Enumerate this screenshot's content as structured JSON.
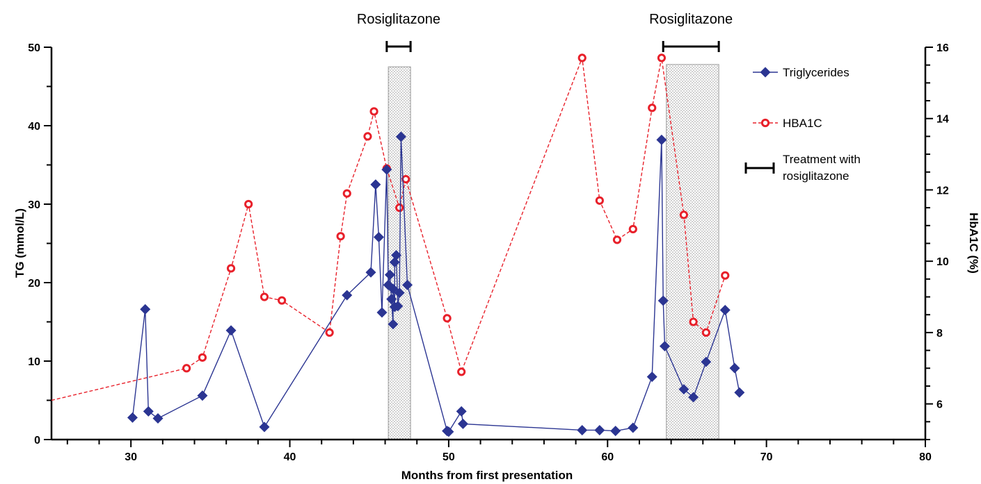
{
  "chart_data": {
    "type": "line",
    "xlabel": "Months from first presentation",
    "ylabel_left": "TG (mmol/L)",
    "ylabel_right": "HbA1C (%)",
    "xlim": [
      25,
      80
    ],
    "xticks": [
      30,
      40,
      50,
      60,
      70,
      80
    ],
    "ylim_left": [
      0,
      50
    ],
    "yticks_left": [
      0,
      10,
      20,
      30,
      40,
      50
    ],
    "ylim_right": [
      5,
      16
    ],
    "yticks_right": [
      6,
      8,
      10,
      12,
      14,
      16
    ],
    "grid": false,
    "legend_position": "top-right",
    "colors": {
      "triglycerides": "#2B3592",
      "hba1c": "#E8202A",
      "shade": "#C9C9C9"
    },
    "series": [
      {
        "name": "Triglycerides",
        "axis": "left",
        "marker": "diamond",
        "line": "solid",
        "x": [
          30.1,
          30.9,
          31.1,
          31.7,
          34.5,
          36.3,
          38.4,
          43.6,
          45.1,
          45.4,
          45.6,
          45.8,
          46.1,
          46.2,
          46.3,
          46.4,
          46.5,
          46.5,
          46.6,
          46.6,
          46.7,
          46.8,
          46.9,
          47.0,
          47.4,
          49.9,
          50.0,
          50.8,
          50.9,
          58.4,
          59.5,
          60.5,
          61.6,
          62.8,
          63.4,
          63.5,
          63.6,
          64.8,
          65.4,
          66.2,
          67.4,
          68.0,
          68.3
        ],
        "y": [
          2.8,
          16.6,
          3.6,
          2.7,
          5.6,
          13.9,
          1.6,
          18.4,
          21.3,
          32.5,
          25.8,
          16.2,
          34.4,
          19.7,
          21.0,
          17.9,
          14.7,
          19.2,
          16.9,
          22.6,
          23.5,
          17.0,
          18.7,
          38.6,
          19.7,
          1.1,
          1.0,
          3.6,
          2.0,
          1.2,
          1.2,
          1.1,
          1.5,
          8.0,
          38.2,
          17.7,
          11.9,
          6.4,
          5.4,
          9.9,
          16.5,
          9.1,
          6.0
        ]
      },
      {
        "name": "HBA1C",
        "axis": "right",
        "marker": "open-circle",
        "line": "dashed",
        "x": [
          25.0,
          33.5,
          34.5,
          36.3,
          37.4,
          38.4,
          39.5,
          42.5,
          43.2,
          43.6,
          44.9,
          45.3,
          46.1,
          46.9,
          47.3,
          49.9,
          50.8,
          58.4,
          59.5,
          60.6,
          61.6,
          62.8,
          63.4,
          64.8,
          65.4,
          66.2,
          67.4
        ],
        "y": [
          6.1,
          7.0,
          7.3,
          9.8,
          11.6,
          9.0,
          8.9,
          8.0,
          10.7,
          11.9,
          13.5,
          14.2,
          12.6,
          11.5,
          12.3,
          8.4,
          6.9,
          15.7,
          11.7,
          10.6,
          10.9,
          14.3,
          15.7,
          11.3,
          8.3,
          8.0,
          9.6
        ]
      }
    ],
    "treatments": [
      {
        "label": "Rosiglitazone",
        "bracket": [
          46.1,
          47.6
        ],
        "shade": [
          46.2,
          47.6
        ],
        "shade_top": 47.5
      },
      {
        "label": "Rosiglitazone",
        "bracket": [
          63.5,
          67.0
        ],
        "shade": [
          63.7,
          67.0
        ],
        "shade_top": 47.8
      }
    ],
    "legend": [
      {
        "key": "triglycerides",
        "label": "Triglycerides"
      },
      {
        "key": "hba1c",
        "label": "HBA1C"
      },
      {
        "key": "treatment",
        "label_line1": "Treatment with",
        "label_line2": "rosiglitazone"
      }
    ]
  }
}
